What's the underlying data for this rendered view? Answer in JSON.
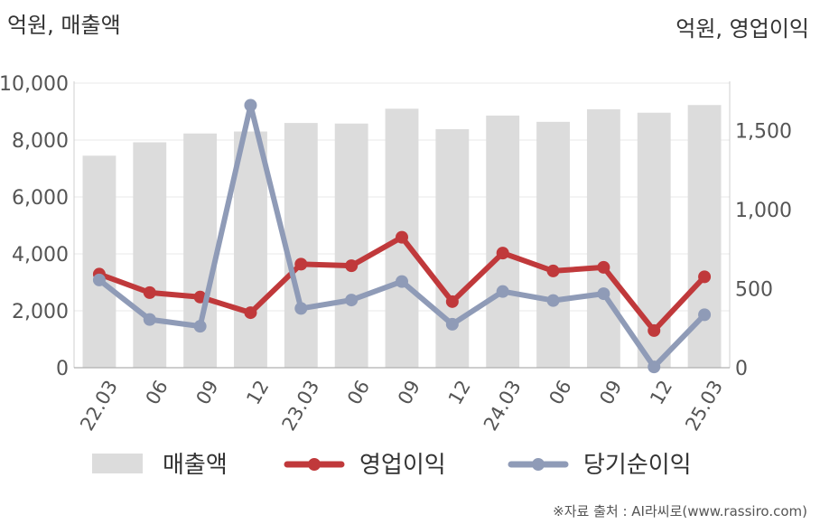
{
  "chart_data": {
    "type": "bar+line",
    "left_axis_unit": "억원, 매출액",
    "right_axis_unit": "억원, 영업이익",
    "categories": [
      "22.03",
      "06",
      "09",
      "12",
      "23.03",
      "06",
      "09",
      "12",
      "24.03",
      "06",
      "09",
      "12",
      "25.03"
    ],
    "left_ylim": [
      0,
      10000
    ],
    "left_ticks": [
      "0",
      "2,000",
      "4,000",
      "6,000",
      "8,000",
      "10,000"
    ],
    "left_tick_values": [
      0,
      2000,
      4000,
      6000,
      8000,
      10000
    ],
    "right_ylim": [
      0,
      1800
    ],
    "right_ticks": [
      "0",
      "500",
      "1,000",
      "1,500"
    ],
    "right_tick_values": [
      0,
      500,
      1000,
      1500
    ],
    "grid": true,
    "legend_position": "bottom",
    "series": [
      {
        "name": "매출액",
        "kind": "bar",
        "axis": "left",
        "color": "#dcdcdc",
        "values": [
          7450,
          7920,
          8230,
          8300,
          8600,
          8580,
          9100,
          8380,
          8860,
          8640,
          9080,
          8960,
          9230
        ]
      },
      {
        "name": "영업이익",
        "kind": "line",
        "axis": "right",
        "color": "#c0393b",
        "values": [
          592,
          475,
          447,
          348,
          655,
          645,
          825,
          418,
          725,
          612,
          635,
          235,
          575
        ]
      },
      {
        "name": "당기순이익",
        "kind": "line",
        "axis": "right",
        "color": "#8f9bb7",
        "values": [
          555,
          305,
          262,
          1660,
          375,
          428,
          545,
          275,
          482,
          425,
          468,
          5,
          335
        ]
      }
    ]
  },
  "source": "※자료 출처 : AI라씨로(www.rassiro.com)"
}
